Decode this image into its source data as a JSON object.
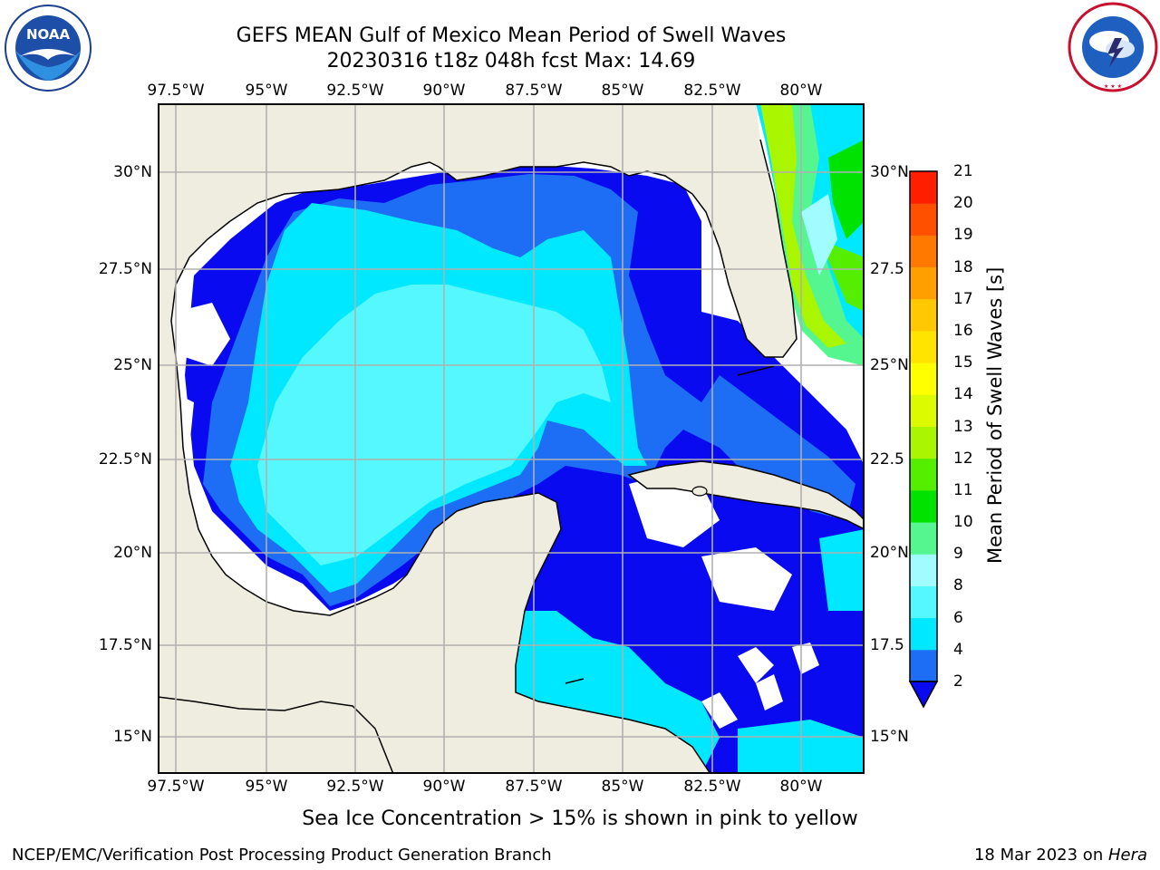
{
  "title": {
    "line1": "GEFS MEAN Gulf of Mexico Mean Period of Swell Waves",
    "line2": "20230316 t18z 048h fcst   Max: 14.69"
  },
  "logos": {
    "left": {
      "name": "noaa-logo",
      "text": "NOAA",
      "ring_text": "NATIONAL OCEANIC AND ATMOSPHERIC ADMINISTRATION · U.S. DEPARTMENT OF COMMERCE"
    },
    "right": {
      "name": "national-weather-service-logo",
      "ring_text": "NATIONAL WEATHER SERVICE"
    }
  },
  "map": {
    "lon_ticks": [
      "97.5°W",
      "95°W",
      "92.5°W",
      "90°W",
      "87.5°W",
      "85°W",
      "82.5°W",
      "80°W"
    ],
    "lat_ticks_left": [
      "30°N",
      "27.5°N",
      "25°N",
      "22.5°N",
      "20°N",
      "17.5°N",
      "15°N"
    ],
    "lat_ticks_right": [
      "30°N",
      "27.5",
      "25°N",
      "22.5",
      "20°N",
      "17.5",
      "15°N"
    ],
    "colors": {
      "land": "#efede0",
      "ocean_missing": "#ffffff",
      "gridline": "#b0b0b0",
      "coastline": "#000000"
    }
  },
  "colorbar": {
    "label": "Mean Period of Swell Waves [s]",
    "ticks": [
      "2",
      "4",
      "6",
      "8",
      "9",
      "10",
      "11",
      "12",
      "13",
      "14",
      "15",
      "16",
      "17",
      "18",
      "19",
      "20",
      "21"
    ],
    "levels": [
      2,
      4,
      6,
      8,
      9,
      10,
      11,
      12,
      13,
      14,
      15,
      16,
      17,
      18,
      19,
      20,
      21
    ],
    "colors": [
      "#1e6ef5",
      "#00e8ff",
      "#55f8ff",
      "#a0fcff",
      "#55f590",
      "#00e200",
      "#55ee00",
      "#aaf500",
      "#ddfb00",
      "#ffff00",
      "#ffe400",
      "#ffc800",
      "#ffa000",
      "#ff7800",
      "#ff5000",
      "#ff1e00"
    ],
    "under_color": "#0a0af0"
  },
  "caption": "Sea Ice Concentration > 15% is shown in pink to yellow",
  "footer": {
    "left": "NCEP/EMC/Verification Post Processing Product Generation Branch",
    "right_prefix": "18 Mar 2023 on ",
    "right_italic": "Hera"
  }
}
